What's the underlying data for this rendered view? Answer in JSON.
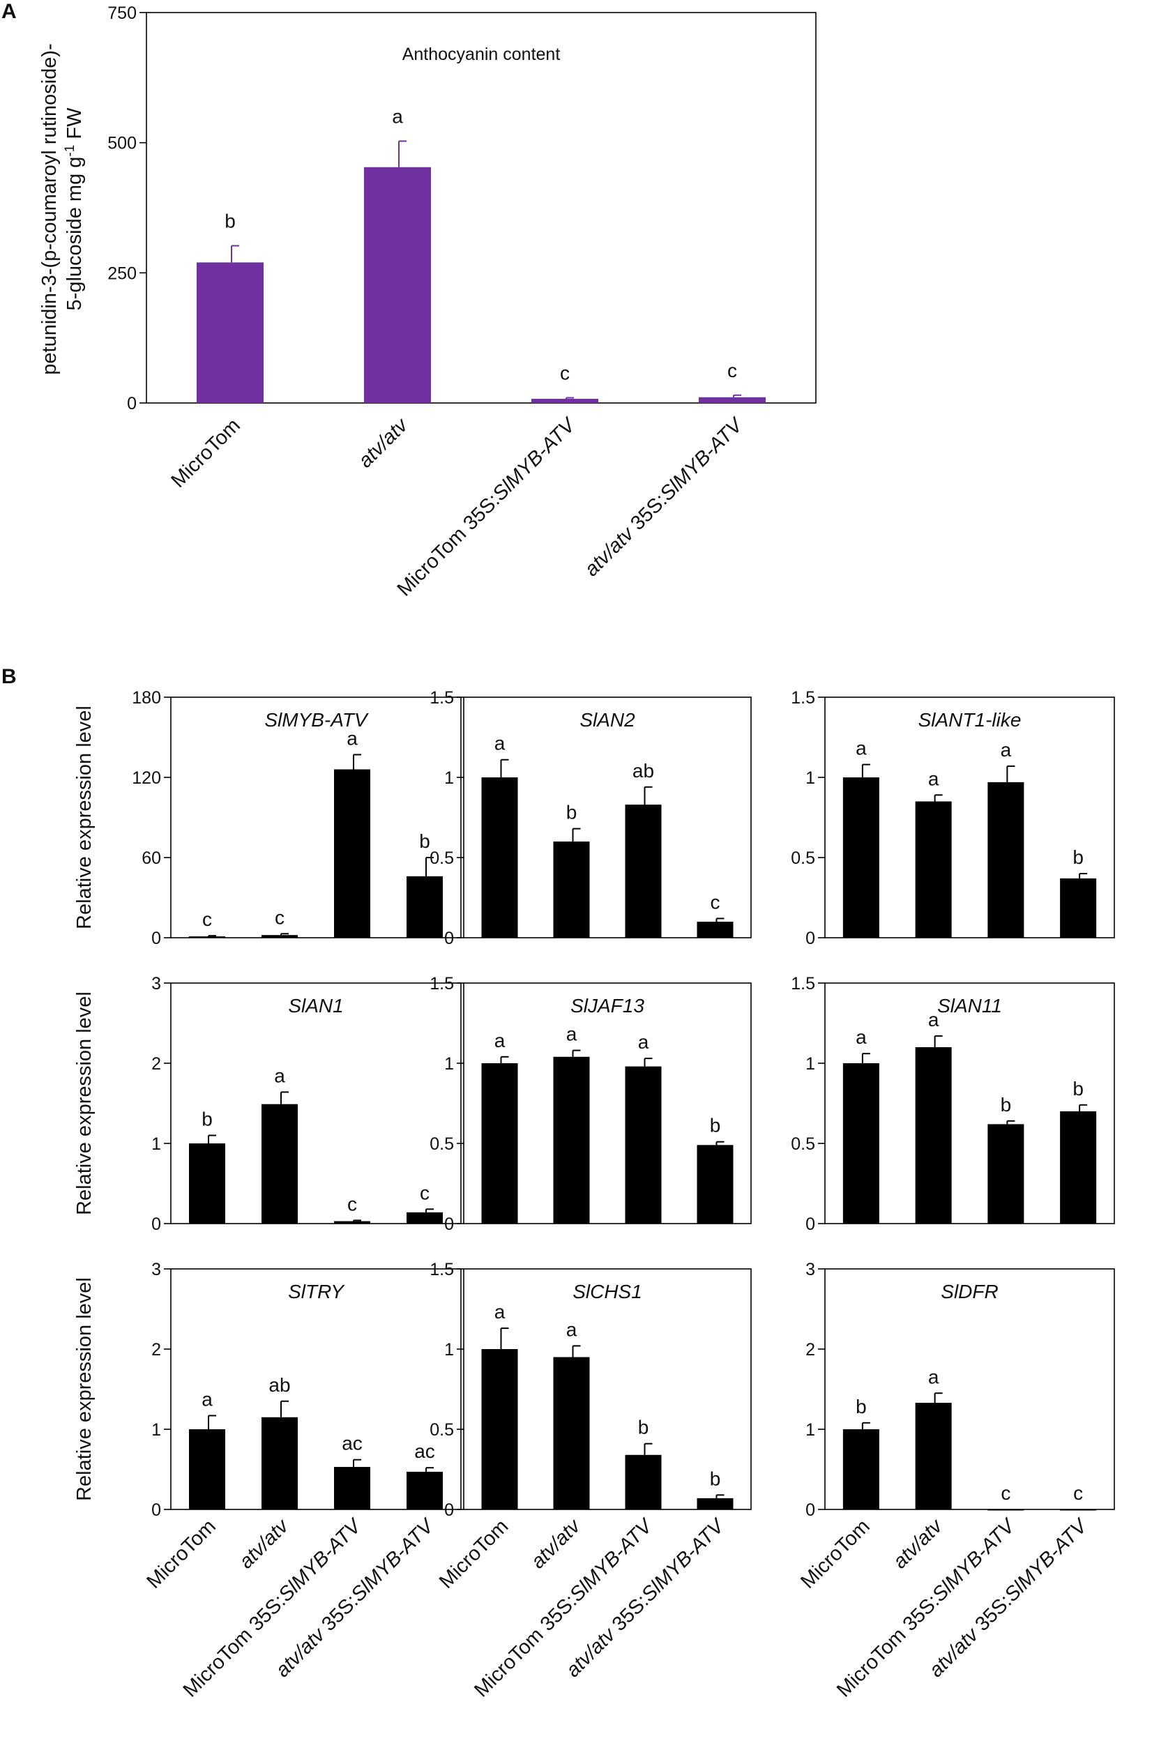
{
  "figure": {
    "panel_a_label": "A",
    "panel_b_label": "B"
  },
  "colors": {
    "bar_a": "#7030a0",
    "bar_b": "#000000",
    "axis": "#000000"
  },
  "chart_data": [
    {
      "id": "A",
      "type": "bar",
      "title": "Anthocyanin content",
      "ylabel_lines": [
        "petunidin-3-(p-coumaroyl rutinoside)-",
        "5-glucoside mg g-1 FW"
      ],
      "ylabel_parts": [
        "petunidin-3-(p-coumaroyl rutinoside)-",
        "5-glucoside mg g",
        "-1",
        " FW"
      ],
      "xlabel": "",
      "categories": [
        "MicroTom",
        "atv/atv",
        "MicroTom 35S:SlMYB-ATV",
        "atv/atv 35S:SlMYB-ATV"
      ],
      "values": [
        270,
        453,
        8,
        11
      ],
      "errors": [
        32,
        50,
        2,
        4
      ],
      "letters": [
        "b",
        "a",
        "c",
        "c"
      ],
      "ylim": [
        0,
        750
      ],
      "yticks": [
        "0",
        "250",
        "500",
        "750"
      ]
    },
    {
      "id": "SlMYB-ATV",
      "type": "bar",
      "title": "SlMYB-ATV",
      "ylabel": "Relative expression level",
      "categories": [
        "MicroTom",
        "atv/atv",
        "MicroTom 35S:SlMYB-ATV",
        "atv/atv 35S:SlMYB-ATV"
      ],
      "values": [
        1,
        2,
        126,
        46
      ],
      "errors": [
        0.5,
        1,
        11,
        14
      ],
      "letters": [
        "c",
        "c",
        "a",
        "b"
      ],
      "ylim": [
        0,
        180
      ],
      "yticks": [
        "0",
        "60",
        "120",
        "180"
      ]
    },
    {
      "id": "SlAN2",
      "type": "bar",
      "title": "SlAN2",
      "categories": [
        "MicroTom",
        "atv/atv",
        "MicroTom 35S:SlMYB-ATV",
        "atv/atv 35S:SlMYB-ATV"
      ],
      "values": [
        1.0,
        0.6,
        0.83,
        0.1
      ],
      "errors": [
        0.11,
        0.08,
        0.11,
        0.02
      ],
      "letters": [
        "a",
        "b",
        "ab",
        "c"
      ],
      "ylim": [
        0,
        1.5
      ],
      "yticks": [
        "0",
        "0.5",
        "1",
        "1.5"
      ]
    },
    {
      "id": "SlANT1-like",
      "type": "bar",
      "title": "SlANT1-like",
      "categories": [
        "MicroTom",
        "atv/atv",
        "MicroTom 35S:SlMYB-ATV",
        "atv/atv 35S:SlMYB-ATV"
      ],
      "values": [
        1.0,
        0.85,
        0.97,
        0.37
      ],
      "errors": [
        0.08,
        0.04,
        0.1,
        0.03
      ],
      "letters": [
        "a",
        "a",
        "a",
        "b"
      ],
      "ylim": [
        0,
        1.5
      ],
      "yticks": [
        "0",
        "0.5",
        "1",
        "1.5"
      ]
    },
    {
      "id": "SlAN1",
      "type": "bar",
      "title": "SlAN1",
      "ylabel": "Relative expression level",
      "categories": [
        "MicroTom",
        "atv/atv",
        "MicroTom 35S:SlMYB-ATV",
        "atv/atv 35S:SlMYB-ATV"
      ],
      "values": [
        1.0,
        1.49,
        0.03,
        0.14
      ],
      "errors": [
        0.1,
        0.15,
        0.01,
        0.04
      ],
      "letters": [
        "b",
        "a",
        "c",
        "c"
      ],
      "ylim": [
        0,
        3
      ],
      "yticks": [
        "0",
        "1",
        "2",
        "3"
      ]
    },
    {
      "id": "SlJAF13",
      "type": "bar",
      "title": "SlJAF13",
      "categories": [
        "MicroTom",
        "atv/atv",
        "MicroTom 35S:SlMYB-ATV",
        "atv/atv 35S:SlMYB-ATV"
      ],
      "values": [
        1.0,
        1.04,
        0.98,
        0.49
      ],
      "errors": [
        0.04,
        0.04,
        0.05,
        0.02
      ],
      "letters": [
        "a",
        "a",
        "a",
        "b"
      ],
      "ylim": [
        0,
        1.5
      ],
      "yticks": [
        "0",
        "0.5",
        "1",
        "1.5"
      ]
    },
    {
      "id": "SlAN11",
      "type": "bar",
      "title": "SlAN11",
      "categories": [
        "MicroTom",
        "atv/atv",
        "MicroTom 35S:SlMYB-ATV",
        "atv/atv 35S:SlMYB-ATV"
      ],
      "values": [
        1.0,
        1.1,
        0.62,
        0.7
      ],
      "errors": [
        0.06,
        0.07,
        0.02,
        0.04
      ],
      "letters": [
        "a",
        "a",
        "b",
        "b"
      ],
      "ylim": [
        0,
        1.5
      ],
      "yticks": [
        "0",
        "0.5",
        "1",
        "1.5"
      ]
    },
    {
      "id": "SlTRY",
      "type": "bar",
      "title": "SlTRY",
      "ylabel": "Relative expression level",
      "categories": [
        "MicroTom",
        "atv/atv",
        "MicroTom 35S:SlMYB-ATV",
        "atv/atv 35S:SlMYB-ATV"
      ],
      "values": [
        1.0,
        1.15,
        0.53,
        0.47
      ],
      "errors": [
        0.17,
        0.2,
        0.09,
        0.05
      ],
      "letters": [
        "a",
        "ab",
        "ac",
        "ac"
      ],
      "ylim": [
        0,
        3
      ],
      "yticks": [
        "0",
        "1",
        "2",
        "3"
      ]
    },
    {
      "id": "SlCHS1",
      "type": "bar",
      "title": "SlCHS1",
      "categories": [
        "MicroTom",
        "atv/atv",
        "MicroTom 35S:SlMYB-ATV",
        "atv/atv 35S:SlMYB-ATV"
      ],
      "values": [
        1.0,
        0.95,
        0.34,
        0.07
      ],
      "errors": [
        0.13,
        0.07,
        0.07,
        0.02
      ],
      "letters": [
        "a",
        "a",
        "b",
        "b"
      ],
      "ylim": [
        0,
        1.5
      ],
      "yticks": [
        "0",
        "0.5",
        "1",
        "1.5"
      ]
    },
    {
      "id": "SlDFR",
      "type": "bar",
      "title": "SlDFR",
      "categories": [
        "MicroTom",
        "atv/atv",
        "MicroTom 35S:SlMYB-ATV",
        "atv/atv 35S:SlMYB-ATV"
      ],
      "values": [
        1.0,
        1.33,
        0,
        0
      ],
      "errors": [
        0.08,
        0.12,
        0,
        0
      ],
      "letters": [
        "b",
        "a",
        "c",
        "c"
      ],
      "ylim": [
        0,
        3
      ],
      "yticks": [
        "0",
        "1",
        "2",
        "3"
      ]
    }
  ]
}
